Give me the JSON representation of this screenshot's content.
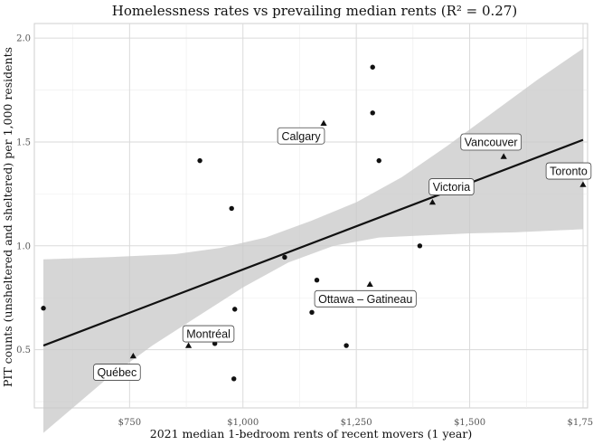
{
  "chart_data": {
    "type": "scatter",
    "title": "Homelessness rates vs prevailing median rents (R² = 0.27)",
    "xlabel": "2021 median 1-bedroom rents of recent movers (1 year)",
    "ylabel": "PIT counts (unsheltered and sheltered) per 1,000 residents",
    "xlim": [
      540,
      1760
    ],
    "ylim": [
      0.22,
      2.07
    ],
    "xticks": [
      750,
      1000,
      1250,
      1500,
      1750
    ],
    "xtick_labels": [
      "$750",
      "$1,000",
      "$1,250",
      "$1,500",
      "$1,750"
    ],
    "yticks": [
      0.5,
      1.0,
      1.5,
      2.0
    ],
    "ytick_labels": [
      "0.5",
      "1.0",
      "1.5",
      "2.0"
    ],
    "grid": true,
    "legend": "none",
    "colors": {
      "background": "#ffffff",
      "panel": "#ffffff",
      "grid": "#dadada",
      "points": "#111111",
      "fit_line": "#111111",
      "ribbon": "#c8c8c8"
    },
    "fit": {
      "x_range": [
        560,
        1750
      ],
      "y_line": [
        0.52,
        1.51
      ],
      "ribbon_lower": [
        [
          560,
          0.1
        ],
        [
          700,
          0.36
        ],
        [
          800,
          0.52
        ],
        [
          900,
          0.66
        ],
        [
          1000,
          0.8
        ],
        [
          1100,
          0.92
        ],
        [
          1200,
          1.0
        ],
        [
          1300,
          1.04
        ],
        [
          1400,
          1.05
        ],
        [
          1500,
          1.06
        ],
        [
          1600,
          1.065
        ],
        [
          1750,
          1.08
        ]
      ],
      "ribbon_upper": [
        [
          1750,
          1.95
        ],
        [
          1650,
          1.8
        ],
        [
          1550,
          1.64
        ],
        [
          1450,
          1.48
        ],
        [
          1350,
          1.33
        ],
        [
          1250,
          1.21
        ],
        [
          1150,
          1.12
        ],
        [
          1050,
          1.04
        ],
        [
          950,
          0.99
        ],
        [
          850,
          0.96
        ],
        [
          700,
          0.945
        ],
        [
          560,
          0.935
        ]
      ]
    },
    "series": [
      {
        "marker": "circle",
        "points": [
          [
            560,
            0.7
          ],
          [
            905,
            1.41
          ],
          [
            938,
            0.53
          ],
          [
            975,
            1.18
          ],
          [
            980,
            0.36
          ],
          [
            982,
            0.695
          ],
          [
            1092,
            0.945
          ],
          [
            1152,
            0.68
          ],
          [
            1163,
            0.835
          ],
          [
            1228,
            0.52
          ],
          [
            1286,
            1.86
          ],
          [
            1286,
            1.64
          ],
          [
            1300,
            1.41
          ],
          [
            1390,
            1.0
          ]
        ]
      },
      {
        "marker": "triangle",
        "points": [
          [
            758,
            0.47
          ],
          [
            880,
            0.52
          ],
          [
            1178,
            1.59
          ],
          [
            1280,
            0.815
          ],
          [
            1418,
            1.21
          ],
          [
            1575,
            1.43
          ],
          [
            1750,
            1.295
          ]
        ]
      }
    ],
    "annotations": [
      {
        "text": "Québec",
        "x": 758,
        "y": 0.47
      },
      {
        "text": "Montréal",
        "x": 880,
        "y": 0.52
      },
      {
        "text": "Calgary",
        "x": 1178,
        "y": 1.59
      },
      {
        "text": "Ottawa – Gatineau",
        "x": 1280,
        "y": 0.815
      },
      {
        "text": "Victoria",
        "x": 1418,
        "y": 1.21
      },
      {
        "text": "Vancouver",
        "x": 1575,
        "y": 1.43
      },
      {
        "text": "Toronto",
        "x": 1750,
        "y": 1.295
      }
    ]
  }
}
